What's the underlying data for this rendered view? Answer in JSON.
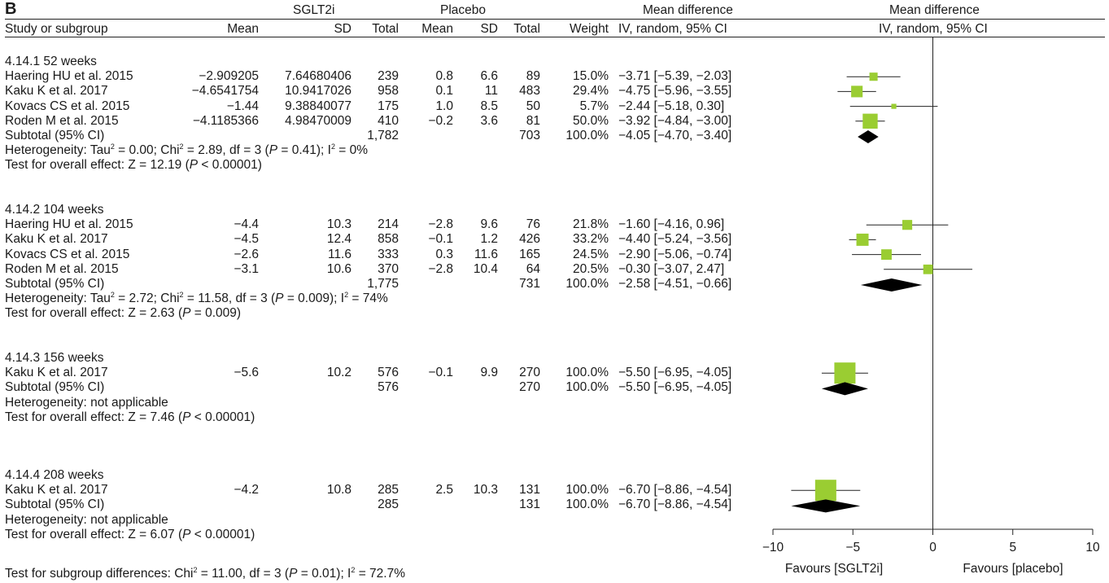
{
  "panel_label": "B",
  "header": {
    "sglt2i": "SGLT2i",
    "placebo": "Placebo",
    "md_left_1": "Mean difference",
    "md_right_1": "Mean difference",
    "study_col": "Study or subgroup",
    "mean1": "Mean",
    "sd1": "SD",
    "total1": "Total",
    "mean2": "Mean",
    "sd2": "SD",
    "total2": "Total",
    "weight": "Weight",
    "md_left_2": "IV, random, 95% CI",
    "md_right_2": "IV, random, 95% CI"
  },
  "subgroups": [
    {
      "title": "4.14.1 52 weeks",
      "studies": [
        {
          "name": "Haering HU et al. 2015",
          "m1": "−2.909205",
          "sd1": "7.64680406",
          "n1": "239",
          "m2": "0.8",
          "sd2": "6.6",
          "n2": "89",
          "w": "15.0%",
          "ci": "−3.71 [−5.39, −2.03]"
        },
        {
          "name": "Kaku K et al. 2017",
          "m1": "−4.6541754",
          "sd1": "10.9417026",
          "n1": "958",
          "m2": "0.1",
          "sd2": "11",
          "n2": "483",
          "w": "29.4%",
          "ci": "−4.75 [−5.96, −3.55]"
        },
        {
          "name": "Kovacs CS et al. 2015",
          "m1": "−1.44",
          "sd1": "9.38840077",
          "n1": "175",
          "m2": "1.0",
          "sd2": "8.5",
          "n2": "50",
          "w": "5.7%",
          "ci": "−2.44 [−5.18, 0.30]"
        },
        {
          "name": "Roden M et al. 2015",
          "m1": "−4.1185366",
          "sd1": "4.98470009",
          "n1": "410",
          "m2": "−0.2",
          "sd2": "3.6",
          "n2": "81",
          "w": "50.0%",
          "ci": "−3.92 [−4.84, −3.00]"
        }
      ],
      "subtotal": {
        "label": "Subtotal (95% CI)",
        "n1": "1,782",
        "n2": "703",
        "w": "100.0%",
        "ci": "−4.05 [−4.70, −3.40]"
      },
      "het": {
        "a": "Heterogeneity: Tau",
        "b": " = 0.00; Chi",
        "c": " = 2.89, df = 3 (",
        "p": "P",
        "d": " = 0.41); I",
        "e": " = 0%"
      },
      "test": {
        "a": "Test for overall effect: Z = 12.19 (",
        "p": "P",
        "b": " < 0.00001)"
      }
    },
    {
      "title": "4.14.2 104 weeks",
      "studies": [
        {
          "name": "Haering HU et al. 2015",
          "m1": "−4.4",
          "sd1": "10.3",
          "n1": "214",
          "m2": "−2.8",
          "sd2": "9.6",
          "n2": "76",
          "w": "21.8%",
          "ci": "−1.60 [−4.16, 0.96]"
        },
        {
          "name": "Kaku K et al. 2017",
          "m1": "−4.5",
          "sd1": "12.4",
          "n1": "858",
          "m2": "−0.1",
          "sd2": "1.2",
          "n2": "426",
          "w": "33.2%",
          "ci": "−4.40 [−5.24, −3.56]"
        },
        {
          "name": "Kovacs CS et al. 2015",
          "m1": "−2.6",
          "sd1": "11.6",
          "n1": "333",
          "m2": "0.3",
          "sd2": "11.6",
          "n2": "165",
          "w": "24.5%",
          "ci": "−2.90 [−5.06, −0.74]"
        },
        {
          "name": "Roden M et al. 2015",
          "m1": "−3.1",
          "sd1": "10.6",
          "n1": "370",
          "m2": "−2.8",
          "sd2": "10.4",
          "n2": "64",
          "w": "20.5%",
          "ci": "−0.30 [−3.07, 2.47]"
        }
      ],
      "subtotal": {
        "label": "Subtotal (95% CI)",
        "n1": "1,775",
        "n2": "731",
        "w": "100.0%",
        "ci": "−2.58 [−4.51, −0.66]"
      },
      "het": {
        "a": "Heterogeneity: Tau",
        "b": " = 2.72; Chi",
        "c": " = 11.58, df = 3 (",
        "p": "P",
        "d": " = 0.009); I",
        "e": " = 74%"
      },
      "test": {
        "a": "Test for overall effect: Z = 2.63 (",
        "p": "P",
        "b": " = 0.009)"
      }
    },
    {
      "title": "4.14.3 156 weeks",
      "studies": [
        {
          "name": "Kaku K et al. 2017",
          "m1": "−5.6",
          "sd1": "10.2",
          "n1": "576",
          "m2": "−0.1",
          "sd2": "9.9",
          "n2": "270",
          "w": "100.0%",
          "ci": "−5.50 [−6.95, −4.05]"
        }
      ],
      "subtotal": {
        "label": "Subtotal (95% CI)",
        "n1": "576",
        "n2": "270",
        "w": "100.0%",
        "ci": "−5.50 [−6.95, −4.05]"
      },
      "het_plain": "Heterogeneity: not applicable",
      "test": {
        "a": "Test for overall effect: Z = 7.46 (",
        "p": "P",
        "b": " < 0.00001)"
      }
    },
    {
      "title": "4.14.4 208 weeks",
      "studies": [
        {
          "name": "Kaku K et al. 2017",
          "m1": "−4.2",
          "sd1": "10.8",
          "n1": "285",
          "m2": "2.5",
          "sd2": "10.3",
          "n2": "131",
          "w": "100.0%",
          "ci": "−6.70 [−8.86, −4.54]"
        }
      ],
      "subtotal": {
        "label": "Subtotal (95% CI)",
        "n1": "285",
        "n2": "131",
        "w": "100.0%",
        "ci": "−6.70 [−8.86, −4.54]"
      },
      "het_plain": "Heterogeneity: not applicable",
      "test": {
        "a": "Test for overall effect: Z = 6.07 (",
        "p": "P",
        "b": " < 0.00001)"
      }
    }
  ],
  "subgroup_test": {
    "a": "Test for subgroup differences: Chi",
    "b": " = 11.00, df = 3 (",
    "p": "P",
    "c": " = 0.01); I",
    "d": " = 72.7%"
  },
  "sup2": "2",
  "chart_data": {
    "type": "scatter",
    "subtype": "forest",
    "xlim": [
      -10,
      10
    ],
    "ticks": [
      -10,
      -5,
      0,
      5,
      10
    ],
    "tick_labels": [
      "−10",
      "−5",
      "0",
      "5",
      "10"
    ],
    "favours_left": "Favours [SGLT2i]",
    "favours_right": "Favours [placebo]",
    "study_color": "#9acd32",
    "diamond_color": "#000000",
    "studies": [
      {
        "group": 0,
        "est": -3.71,
        "lo": -5.39,
        "hi": -2.03,
        "weight": 15.0
      },
      {
        "group": 0,
        "est": -4.75,
        "lo": -5.96,
        "hi": -3.55,
        "weight": 29.4
      },
      {
        "group": 0,
        "est": -2.44,
        "lo": -5.18,
        "hi": 0.3,
        "weight": 5.7
      },
      {
        "group": 0,
        "est": -3.92,
        "lo": -4.84,
        "hi": -3.0,
        "weight": 50.0
      },
      {
        "group": 1,
        "est": -1.6,
        "lo": -4.16,
        "hi": 0.96,
        "weight": 21.8
      },
      {
        "group": 1,
        "est": -4.4,
        "lo": -5.24,
        "hi": -3.56,
        "weight": 33.2
      },
      {
        "group": 1,
        "est": -2.9,
        "lo": -5.06,
        "hi": -0.74,
        "weight": 24.5
      },
      {
        "group": 1,
        "est": -0.3,
        "lo": -3.07,
        "hi": 2.47,
        "weight": 20.5
      },
      {
        "group": 2,
        "est": -5.5,
        "lo": -6.95,
        "hi": -4.05,
        "weight": 100.0
      },
      {
        "group": 3,
        "est": -6.7,
        "lo": -8.86,
        "hi": -4.54,
        "weight": 100.0
      }
    ],
    "subtotals": [
      {
        "group": 0,
        "est": -4.05,
        "lo": -4.7,
        "hi": -3.4
      },
      {
        "group": 1,
        "est": -2.58,
        "lo": -4.51,
        "hi": -0.66
      },
      {
        "group": 2,
        "est": -5.5,
        "lo": -6.95,
        "hi": -4.05
      },
      {
        "group": 3,
        "est": -6.7,
        "lo": -8.86,
        "hi": -4.54
      }
    ]
  }
}
